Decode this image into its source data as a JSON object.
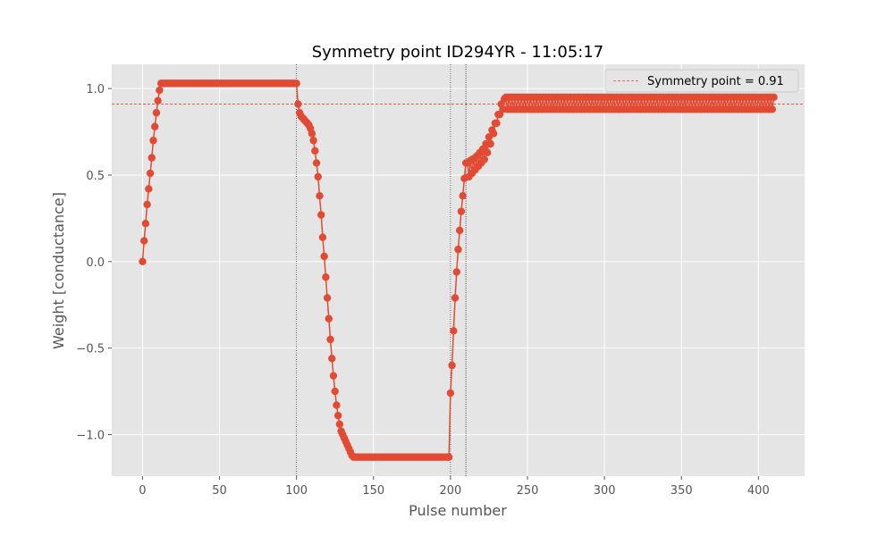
{
  "chart_data": {
    "type": "line",
    "title": "Symmetry point ID294YR - 11:05:17",
    "xlabel": "Pulse number",
    "ylabel": "Weight [conductance]",
    "xlim": [
      -20,
      430
    ],
    "ylim": [
      -1.24,
      1.14
    ],
    "x_ticks": [
      0,
      50,
      100,
      150,
      200,
      250,
      300,
      350,
      400
    ],
    "y_ticks": [
      -1.0,
      -0.5,
      0.0,
      0.5,
      1.0
    ],
    "x_tick_labels": [
      "0",
      "50",
      "100",
      "150",
      "200",
      "250",
      "300",
      "350",
      "400"
    ],
    "y_tick_labels": [
      "−1.0",
      "−0.5",
      "0.0",
      "0.5",
      "1.0"
    ],
    "grid": true,
    "legend_position": "top-right",
    "series_color": "#E24A33",
    "symmetry_line_color": "#E24A33",
    "background_color": "#E5E5E5",
    "symmetry_point": 0.91,
    "legend_label": "Symmetry point = 0.91",
    "vertical_markers": [
      100,
      200,
      210
    ],
    "segments": [
      {
        "x_start": 0,
        "y": [
          0.0,
          0.12,
          0.22,
          0.33,
          0.42,
          0.51,
          0.6,
          0.7,
          0.78,
          0.86,
          0.93,
          0.99,
          1.03
        ]
      },
      {
        "x_start": 13,
        "x_end": 100,
        "y_constant": 1.03
      },
      {
        "x_start": 101,
        "y": [
          0.91,
          0.86,
          0.84,
          0.83,
          0.82,
          0.81,
          0.8,
          0.79,
          0.77,
          0.74,
          0.7,
          0.64,
          0.57,
          0.49,
          0.38,
          0.27,
          0.14,
          0.03,
          -0.09,
          -0.21,
          -0.33,
          -0.45,
          -0.56,
          -0.66,
          -0.75,
          -0.83,
          -0.89,
          -0.94,
          -0.98,
          -1.0,
          -1.02,
          -1.04,
          -1.06,
          -1.08,
          -1.1,
          -1.12,
          -1.13
        ]
      },
      {
        "x_start": 138,
        "x_end": 199,
        "y_constant": -1.13
      },
      {
        "x_start": 200,
        "y": [
          -0.76,
          -0.6,
          -0.4,
          -0.21,
          -0.06,
          0.07,
          0.18,
          0.29,
          0.38,
          0.48,
          0.57
        ]
      },
      {
        "x_start": 211,
        "x_end": 235,
        "upper": [
          0.57,
          0.58,
          0.585,
          0.59,
          0.595,
          0.6,
          0.61,
          0.62,
          0.63,
          0.64,
          0.65,
          0.665,
          0.68,
          0.7,
          0.72,
          0.74,
          0.76,
          0.78,
          0.8,
          0.82,
          0.85,
          0.88,
          0.91,
          0.93,
          0.94
        ],
        "lower": [
          0.48,
          0.49,
          0.5,
          0.51,
          0.52,
          0.53,
          0.54,
          0.55,
          0.56,
          0.57,
          0.58,
          0.59,
          0.61,
          0.63,
          0.65,
          0.68,
          0.71,
          0.74,
          0.77,
          0.8,
          0.83,
          0.85,
          0.87,
          0.88,
          0.88
        ]
      },
      {
        "x_start": 236,
        "x_end": 410,
        "band_high": 0.95,
        "band_low": 0.88
      }
    ]
  }
}
